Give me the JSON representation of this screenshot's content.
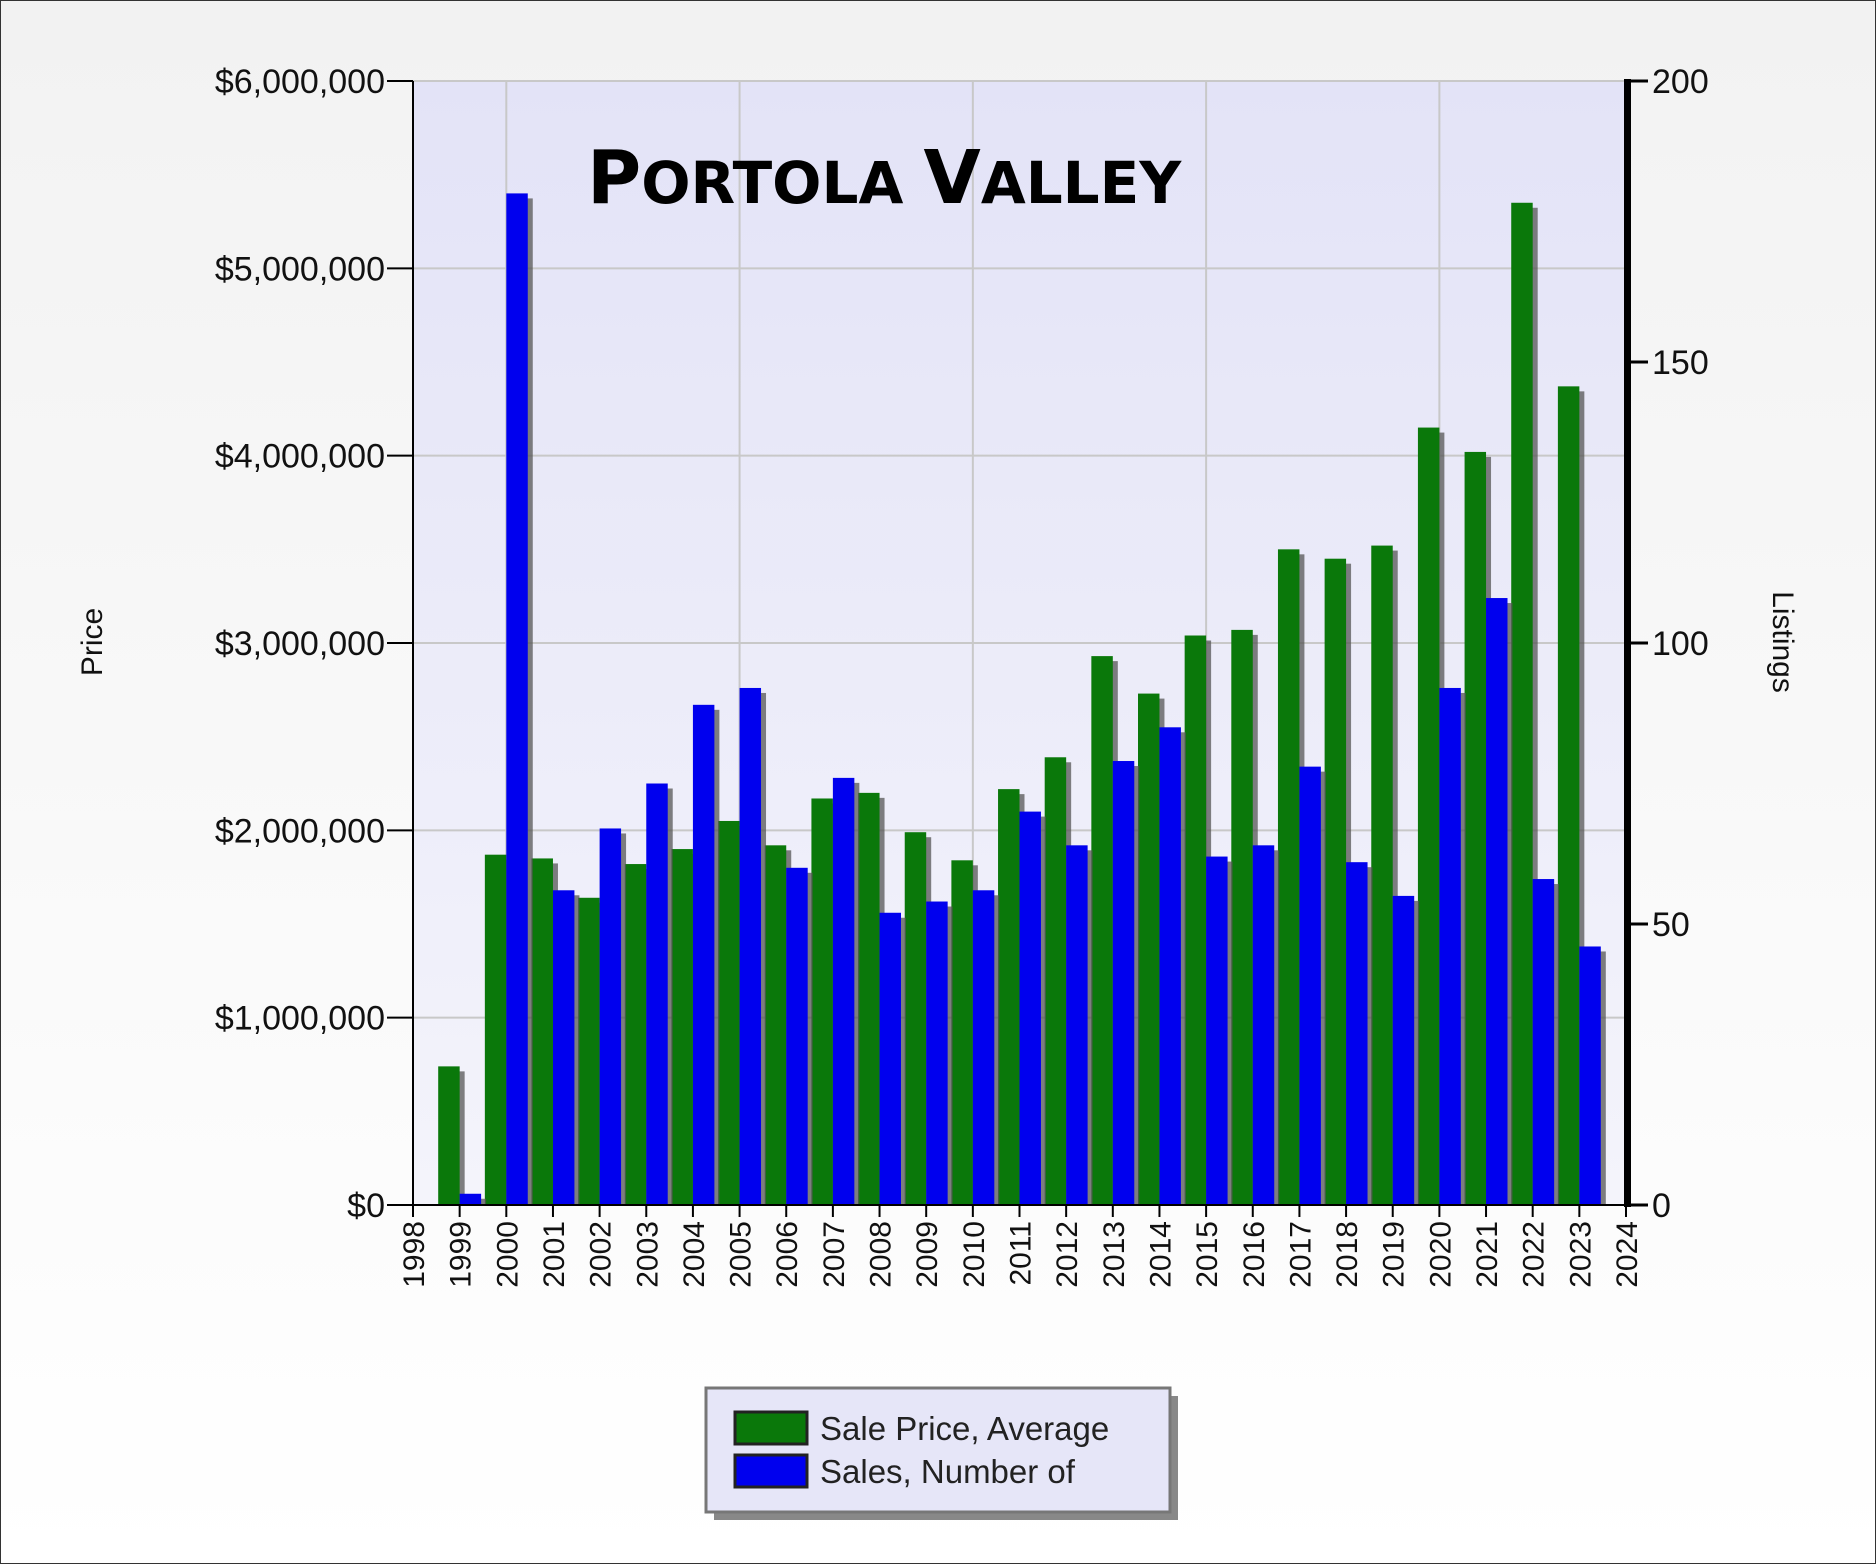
{
  "chart_data": {
    "type": "bar",
    "title": "Portola Valley",
    "title_style": "small-caps",
    "y_left_label": "Price",
    "y_right_label": "Listings",
    "x_ticks": [
      "1998",
      "1999",
      "2000",
      "2001",
      "2002",
      "2003",
      "2004",
      "2005",
      "2006",
      "2007",
      "2008",
      "2009",
      "2010",
      "2011",
      "2012",
      "2013",
      "2014",
      "2015",
      "2016",
      "2017",
      "2018",
      "2019",
      "2020",
      "2021",
      "2022",
      "2023",
      "2024"
    ],
    "y_left_ticks": [
      "$0",
      "$1,000,000",
      "$2,000,000",
      "$3,000,000",
      "$4,000,000",
      "$5,000,000",
      "$6,000,000"
    ],
    "y_right_ticks": [
      "0",
      "50",
      "100",
      "150",
      "200"
    ],
    "ylim_left": [
      0,
      6000000
    ],
    "ylim_right": [
      0,
      200
    ],
    "xlim": [
      1998,
      2024
    ],
    "grid": true,
    "legend_position": "bottom-center",
    "categories": [
      1999,
      2000,
      2001,
      2002,
      2003,
      2004,
      2005,
      2006,
      2007,
      2008,
      2009,
      2010,
      2011,
      2012,
      2013,
      2014,
      2015,
      2016,
      2017,
      2018,
      2019,
      2020,
      2021,
      2022,
      2023
    ],
    "series": [
      {
        "name": "Sale Price, Average",
        "axis": "left",
        "color": "#0a780a",
        "values": [
          740000,
          1870000,
          1850000,
          1640000,
          1820000,
          1900000,
          2050000,
          1920000,
          2170000,
          2200000,
          1990000,
          1840000,
          2220000,
          2390000,
          2930000,
          2730000,
          3040000,
          3070000,
          3500000,
          3450000,
          3520000,
          4150000,
          4020000,
          5350000,
          4370000
        ]
      },
      {
        "name": "Sales, Number of",
        "axis": "right",
        "color": "#0000ee",
        "values": [
          2,
          180,
          56,
          67,
          75,
          89,
          92,
          60,
          76,
          52,
          54,
          56,
          70,
          64,
          79,
          85,
          62,
          64,
          78,
          61,
          55,
          92,
          108,
          58,
          46
        ]
      }
    ]
  },
  "colors": {
    "plot_background": "#e6e6f8",
    "gridline": "#c8c8c8",
    "legend_background": "#e6e6f8",
    "shadow": "#555555"
  }
}
